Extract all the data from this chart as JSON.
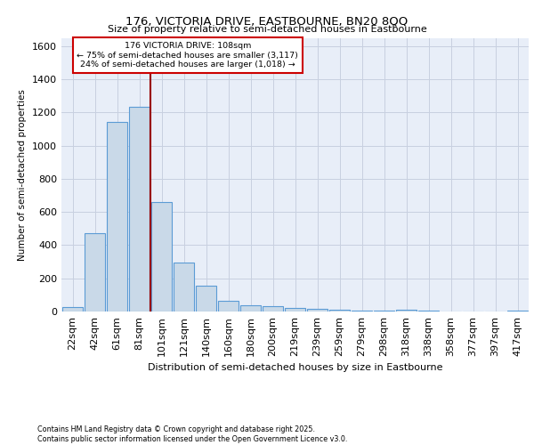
{
  "title_line1": "176, VICTORIA DRIVE, EASTBOURNE, BN20 8QQ",
  "title_line2": "Size of property relative to semi-detached houses in Eastbourne",
  "xlabel": "Distribution of semi-detached houses by size in Eastbourne",
  "ylabel": "Number of semi-detached properties",
  "categories": [
    "22sqm",
    "42sqm",
    "61sqm",
    "81sqm",
    "101sqm",
    "121sqm",
    "140sqm",
    "160sqm",
    "180sqm",
    "200sqm",
    "219sqm",
    "239sqm",
    "259sqm",
    "279sqm",
    "298sqm",
    "318sqm",
    "338sqm",
    "358sqm",
    "377sqm",
    "397sqm",
    "417sqm"
  ],
  "values": [
    25,
    470,
    1145,
    1235,
    660,
    295,
    155,
    65,
    35,
    30,
    20,
    15,
    12,
    5,
    5,
    10,
    3,
    2,
    2,
    2,
    8
  ],
  "bar_color": "#c9d9e8",
  "bar_edge_color": "#5b9bd5",
  "annotation_text_line1": "176 VICTORIA DRIVE: 108sqm",
  "annotation_text_line2": "← 75% of semi-detached houses are smaller (3,117)",
  "annotation_text_line3": "24% of semi-detached houses are larger (1,018) →",
  "annotation_box_color": "#ffffff",
  "annotation_box_edge_color": "#cc0000",
  "red_line_color": "#990000",
  "ylim": [
    0,
    1650
  ],
  "yticks": [
    0,
    200,
    400,
    600,
    800,
    1000,
    1200,
    1400,
    1600
  ],
  "grid_color": "#c8d0e0",
  "bg_color": "#e8eef8",
  "footer_line1": "Contains HM Land Registry data © Crown copyright and database right 2025.",
  "footer_line2": "Contains public sector information licensed under the Open Government Licence v3.0."
}
